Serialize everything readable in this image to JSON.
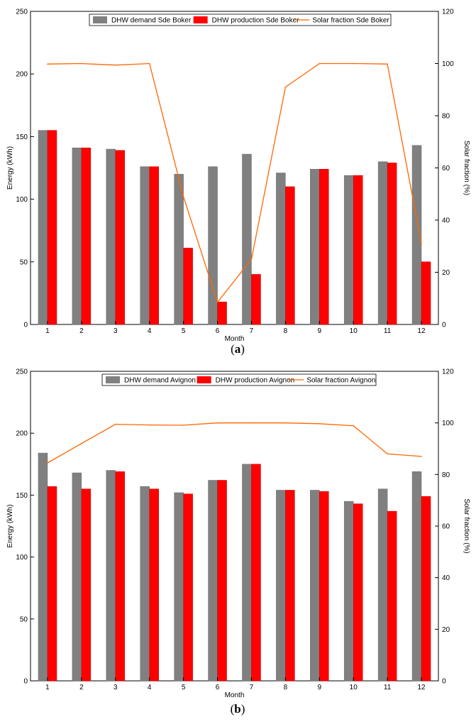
{
  "chart_data": [
    {
      "type": "bar",
      "panel_label": "a",
      "categories": [
        "1",
        "2",
        "3",
        "4",
        "5",
        "6",
        "7",
        "8",
        "9",
        "10",
        "11",
        "12"
      ],
      "xlabel": "Month",
      "ylabel": "Energy (kWh)",
      "ylim": [
        0,
        250
      ],
      "yticks": [
        0,
        50,
        100,
        150,
        200,
        250
      ],
      "y2label": "Solar fraction (%)",
      "y2lim": [
        0,
        120
      ],
      "y2ticks": [
        0,
        20,
        40,
        60,
        80,
        100,
        120
      ],
      "legend_position": "top-center",
      "series": [
        {
          "name": "DHW demand Sde Boker",
          "type": "bar",
          "axis": "left",
          "color": "#808080",
          "values": [
            155,
            141,
            140,
            126,
            120,
            126,
            136,
            121,
            124,
            119,
            130,
            143
          ]
        },
        {
          "name": "DHW production Sde Boker",
          "type": "bar",
          "axis": "left",
          "color": "#ff0000",
          "values": [
            155,
            141,
            139,
            126,
            61,
            18,
            40,
            110,
            124,
            119,
            129,
            50
          ]
        },
        {
          "name": "Solar fraction Sde Boker",
          "type": "line",
          "axis": "right",
          "color": "#ff6600",
          "values": [
            99.8,
            100,
            99.4,
            100,
            49,
            8.5,
            25,
            91,
            100,
            100,
            99.8,
            31
          ]
        }
      ]
    },
    {
      "type": "bar",
      "panel_label": "b",
      "categories": [
        "1",
        "2",
        "3",
        "4",
        "5",
        "6",
        "7",
        "8",
        "9",
        "10",
        "11",
        "12"
      ],
      "xlabel": "Month",
      "ylabel": "Energy (kWh)",
      "ylim": [
        0,
        250
      ],
      "yticks": [
        0,
        50,
        100,
        150,
        200,
        250
      ],
      "y2label": "Solar fraction (%)",
      "y2lim": [
        0,
        120
      ],
      "y2ticks": [
        0,
        20,
        40,
        60,
        80,
        100,
        120
      ],
      "legend_position": "top-center",
      "series": [
        {
          "name": "DHW demand Avignon",
          "type": "bar",
          "axis": "left",
          "color": "#808080",
          "values": [
            184,
            168,
            170,
            157,
            152,
            162,
            175,
            154,
            154,
            145,
            155,
            169
          ]
        },
        {
          "name": "DHW production Avignon",
          "type": "bar",
          "axis": "left",
          "color": "#ff0000",
          "values": [
            157,
            155,
            169,
            155,
            151,
            162,
            175,
            154,
            153,
            143,
            137,
            149
          ]
        },
        {
          "name": "Solar fraction Avignon",
          "type": "line",
          "axis": "right",
          "color": "#ff6600",
          "values": [
            84.5,
            92,
            99.5,
            99.2,
            99.1,
            100,
            100,
            100,
            99.7,
            98.9,
            88,
            87
          ]
        }
      ]
    }
  ]
}
